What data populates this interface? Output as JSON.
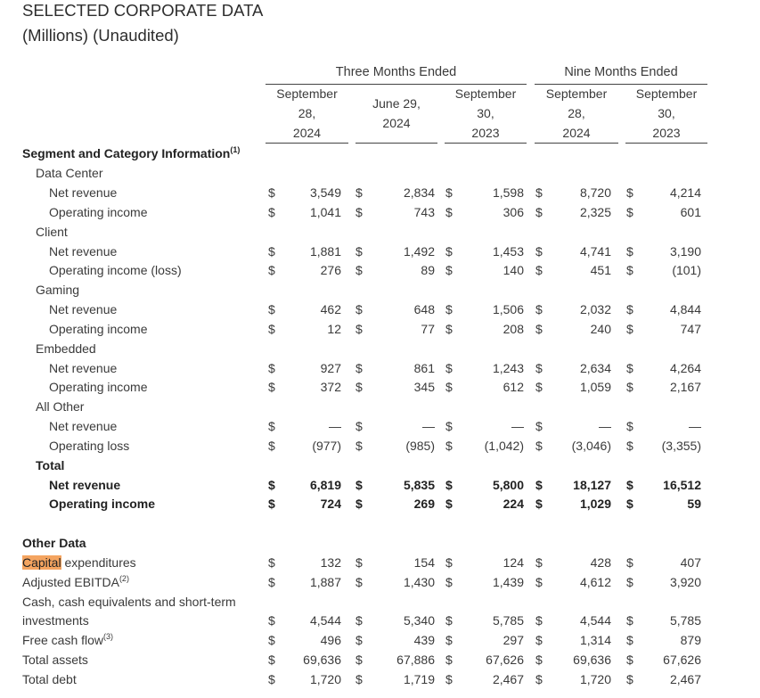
{
  "title": "SELECTED CORPORATE DATA",
  "subtitle": "(Millions) (Unaudited)",
  "groups": {
    "three_months": "Three Months Ended",
    "nine_months": "Nine Months Ended"
  },
  "columns": [
    {
      "line1": "September",
      "line2": "28,",
      "line3": "2024"
    },
    {
      "line1": "June 29,",
      "line2": "2024",
      "line3": ""
    },
    {
      "line1": "September",
      "line2": "30,",
      "line3": "2023"
    },
    {
      "line1": "September",
      "line2": "28,",
      "line3": "2024"
    },
    {
      "line1": "September",
      "line2": "30,",
      "line3": "2023"
    }
  ],
  "currency_symbol": "$",
  "rows": [
    {
      "label": "Segment and Category Information",
      "sup": "(1)",
      "level": 0,
      "bold": true,
      "values": null
    },
    {
      "label": "Data Center",
      "level": 1,
      "values": null
    },
    {
      "label": "Net revenue",
      "level": 2,
      "values": [
        "3,549",
        "2,834",
        "1,598",
        "8,720",
        "4,214"
      ]
    },
    {
      "label": "Operating income",
      "level": 2,
      "values": [
        "1,041",
        "743",
        "306",
        "2,325",
        "601"
      ]
    },
    {
      "label": "Client",
      "level": 1,
      "values": null
    },
    {
      "label": "Net revenue",
      "level": 2,
      "values": [
        "1,881",
        "1,492",
        "1,453",
        "4,741",
        "3,190"
      ]
    },
    {
      "label": "Operating income (loss)",
      "level": 2,
      "values": [
        "276",
        "89",
        "140",
        "451",
        "(101)"
      ]
    },
    {
      "label": "Gaming",
      "level": 1,
      "values": null
    },
    {
      "label": "Net revenue",
      "level": 2,
      "values": [
        "462",
        "648",
        "1,506",
        "2,032",
        "4,844"
      ]
    },
    {
      "label": "Operating income",
      "level": 2,
      "values": [
        "12",
        "77",
        "208",
        "240",
        "747"
      ]
    },
    {
      "label": "Embedded",
      "level": 1,
      "values": null
    },
    {
      "label": "Net revenue",
      "level": 2,
      "values": [
        "927",
        "861",
        "1,243",
        "2,634",
        "4,264"
      ]
    },
    {
      "label": "Operating income",
      "level": 2,
      "values": [
        "372",
        "345",
        "612",
        "1,059",
        "2,167"
      ]
    },
    {
      "label": "All Other",
      "level": 1,
      "values": null
    },
    {
      "label": "Net revenue",
      "level": 2,
      "values": [
        "—",
        "—",
        "—",
        "—",
        "—"
      ]
    },
    {
      "label": "Operating loss",
      "level": 2,
      "values": [
        "(977)",
        "(985)",
        "(1,042)",
        "(3,046)",
        "(3,355)"
      ]
    },
    {
      "label": "Total",
      "level": 1,
      "bold": true,
      "values": null
    },
    {
      "label": "Net revenue",
      "level": 2,
      "bold": true,
      "values": [
        "6,819",
        "5,835",
        "5,800",
        "18,127",
        "16,512"
      ]
    },
    {
      "label": "Operating income",
      "level": 2,
      "bold": true,
      "values": [
        "724",
        "269",
        "224",
        "1,029",
        "59"
      ]
    },
    {
      "label": "",
      "level": 0,
      "values": null
    },
    {
      "label": "Other Data",
      "level": 0,
      "bold": true,
      "values": null
    },
    {
      "label_highlight": "Capital",
      "label": " expenditures",
      "level": 0,
      "values": [
        "132",
        "154",
        "124",
        "428",
        "407"
      ]
    },
    {
      "label": "Adjusted EBITDA",
      "sup": "(2)",
      "level": 0,
      "values": [
        "1,887",
        "1,430",
        "1,439",
        "4,612",
        "3,920"
      ]
    },
    {
      "label": "Cash, cash equivalents and short-term",
      "level": 0,
      "values": null
    },
    {
      "label": "investments",
      "level": 0,
      "values": [
        "4,544",
        "5,340",
        "5,785",
        "4,544",
        "5,785"
      ]
    },
    {
      "label": "Free cash flow",
      "sup": "(3)",
      "level": 0,
      "values": [
        "496",
        "439",
        "297",
        "1,314",
        "879"
      ]
    },
    {
      "label": "Total assets",
      "level": 0,
      "values": [
        "69,636",
        "67,886",
        "67,626",
        "69,636",
        "67,626"
      ]
    },
    {
      "label": "Total debt",
      "level": 0,
      "values": [
        "1,720",
        "1,719",
        "2,467",
        "1,720",
        "2,467"
      ]
    }
  ]
}
